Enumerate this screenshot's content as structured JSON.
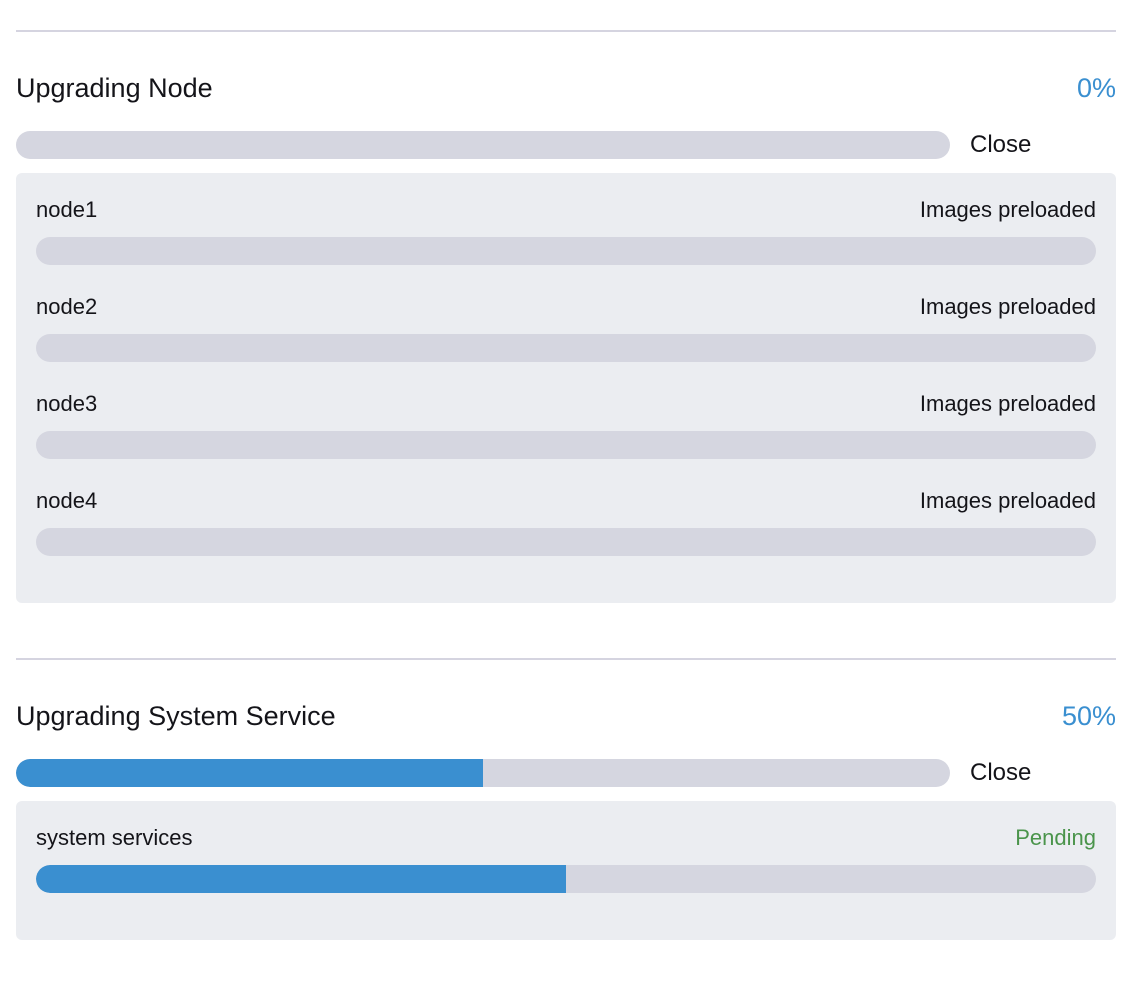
{
  "colors": {
    "accent_blue": "#3a8fd0",
    "success_green": "#4a944b",
    "text_dark": "#141419",
    "track_gray": "#d5d6e0",
    "panel_bg": "#ebedf1",
    "divider": "#d5d4e0"
  },
  "sections": [
    {
      "title": "Upgrading Node",
      "percent_label": "0%",
      "percent_value": 0,
      "close_label": "Close",
      "rows": [
        {
          "name": "node1",
          "status": "Images preloaded",
          "status_color": "#141419",
          "percent": 0
        },
        {
          "name": "node2",
          "status": "Images preloaded",
          "status_color": "#141419",
          "percent": 0
        },
        {
          "name": "node3",
          "status": "Images preloaded",
          "status_color": "#141419",
          "percent": 0
        },
        {
          "name": "node4",
          "status": "Images preloaded",
          "status_color": "#141419",
          "percent": 0
        }
      ]
    },
    {
      "title": "Upgrading System Service",
      "percent_label": "50%",
      "percent_value": 50,
      "close_label": "Close",
      "rows": [
        {
          "name": "system services",
          "status": "Pending",
          "status_color": "#4a944b",
          "percent": 50
        }
      ]
    }
  ]
}
